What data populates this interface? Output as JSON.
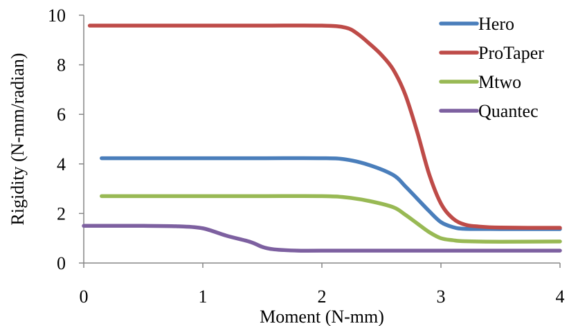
{
  "chart_data": {
    "type": "line",
    "xlabel": "Moment (N-mm)",
    "ylabel": "Rigidity (N-mm/radian)",
    "xlim": [
      0,
      4
    ],
    "ylim": [
      0,
      10
    ],
    "x_ticks": [
      "0",
      "1",
      "2",
      "3",
      "4"
    ],
    "y_ticks": [
      "0",
      "2",
      "4",
      "6",
      "8",
      "10"
    ],
    "grid": false,
    "legend": "top-right",
    "series": [
      {
        "name": "Hero",
        "color": "#4a7ebb",
        "x": [
          0.15,
          0.5,
          1.0,
          1.5,
          2.0,
          2.2,
          2.4,
          2.6,
          2.7,
          2.8,
          2.9,
          3.0,
          3.1,
          3.2,
          3.5,
          4.0
        ],
        "y": [
          4.23,
          4.23,
          4.23,
          4.23,
          4.23,
          4.18,
          3.95,
          3.55,
          3.1,
          2.6,
          2.1,
          1.65,
          1.45,
          1.38,
          1.37,
          1.37
        ]
      },
      {
        "name": "ProTaper",
        "color": "#be4b48",
        "x": [
          0.05,
          0.5,
          1.0,
          1.5,
          2.0,
          2.2,
          2.3,
          2.4,
          2.5,
          2.6,
          2.7,
          2.8,
          2.9,
          3.0,
          3.1,
          3.2,
          3.3,
          3.5,
          4.0
        ],
        "y": [
          9.58,
          9.58,
          9.58,
          9.58,
          9.58,
          9.5,
          9.25,
          8.85,
          8.4,
          7.8,
          6.8,
          5.3,
          3.6,
          2.4,
          1.8,
          1.55,
          1.48,
          1.43,
          1.42
        ]
      },
      {
        "name": "Mtwo",
        "color": "#98b954",
        "x": [
          0.15,
          0.5,
          1.0,
          1.5,
          2.0,
          2.2,
          2.4,
          2.6,
          2.7,
          2.8,
          2.9,
          3.0,
          3.1,
          3.2,
          3.5,
          4.0
        ],
        "y": [
          2.7,
          2.7,
          2.7,
          2.7,
          2.7,
          2.65,
          2.5,
          2.25,
          1.95,
          1.6,
          1.25,
          1.0,
          0.92,
          0.88,
          0.86,
          0.87
        ]
      },
      {
        "name": "Quantec",
        "color": "#7d60a0",
        "x": [
          0.0,
          0.5,
          0.8,
          1.0,
          1.2,
          1.4,
          1.5,
          1.6,
          1.8,
          2.0,
          3.0,
          4.0
        ],
        "y": [
          1.5,
          1.5,
          1.48,
          1.4,
          1.1,
          0.85,
          0.65,
          0.55,
          0.5,
          0.5,
          0.5,
          0.5
        ]
      }
    ]
  }
}
